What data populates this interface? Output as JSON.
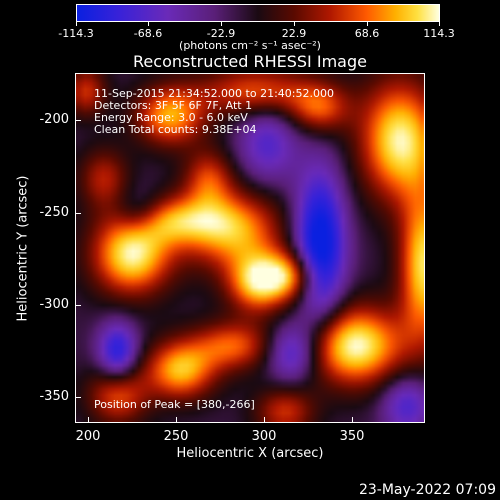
{
  "colorbar": {
    "ticks": [
      "-114.3",
      "-68.6",
      "-22.9",
      "22.9",
      "68.6",
      "114.3"
    ],
    "units": "(photons cm⁻² s⁻¹ asec⁻²)"
  },
  "title": "Reconstructed RHESSI Image",
  "annotations": {
    "time": "11-Sep-2015 21:34:52.000 to 21:40:52.000",
    "detectors": "Detectors: 3F 5F 6F 7F, Att 1",
    "energy": "Energy Range: 3.0 - 6.0 keV",
    "clean": "Clean     Total counts: 9.38E+04",
    "peak": "Position of Peak = [380,-266]"
  },
  "axes": {
    "xlabel": "Heliocentric X (arcsec)",
    "ylabel": "Heliocentric Y (arcsec)",
    "xticks": [
      "200",
      "250",
      "300",
      "350"
    ],
    "yticks": [
      "-200",
      "-250",
      "-300",
      "-350"
    ]
  },
  "timestamp": "23-May-2022 07:09"
}
